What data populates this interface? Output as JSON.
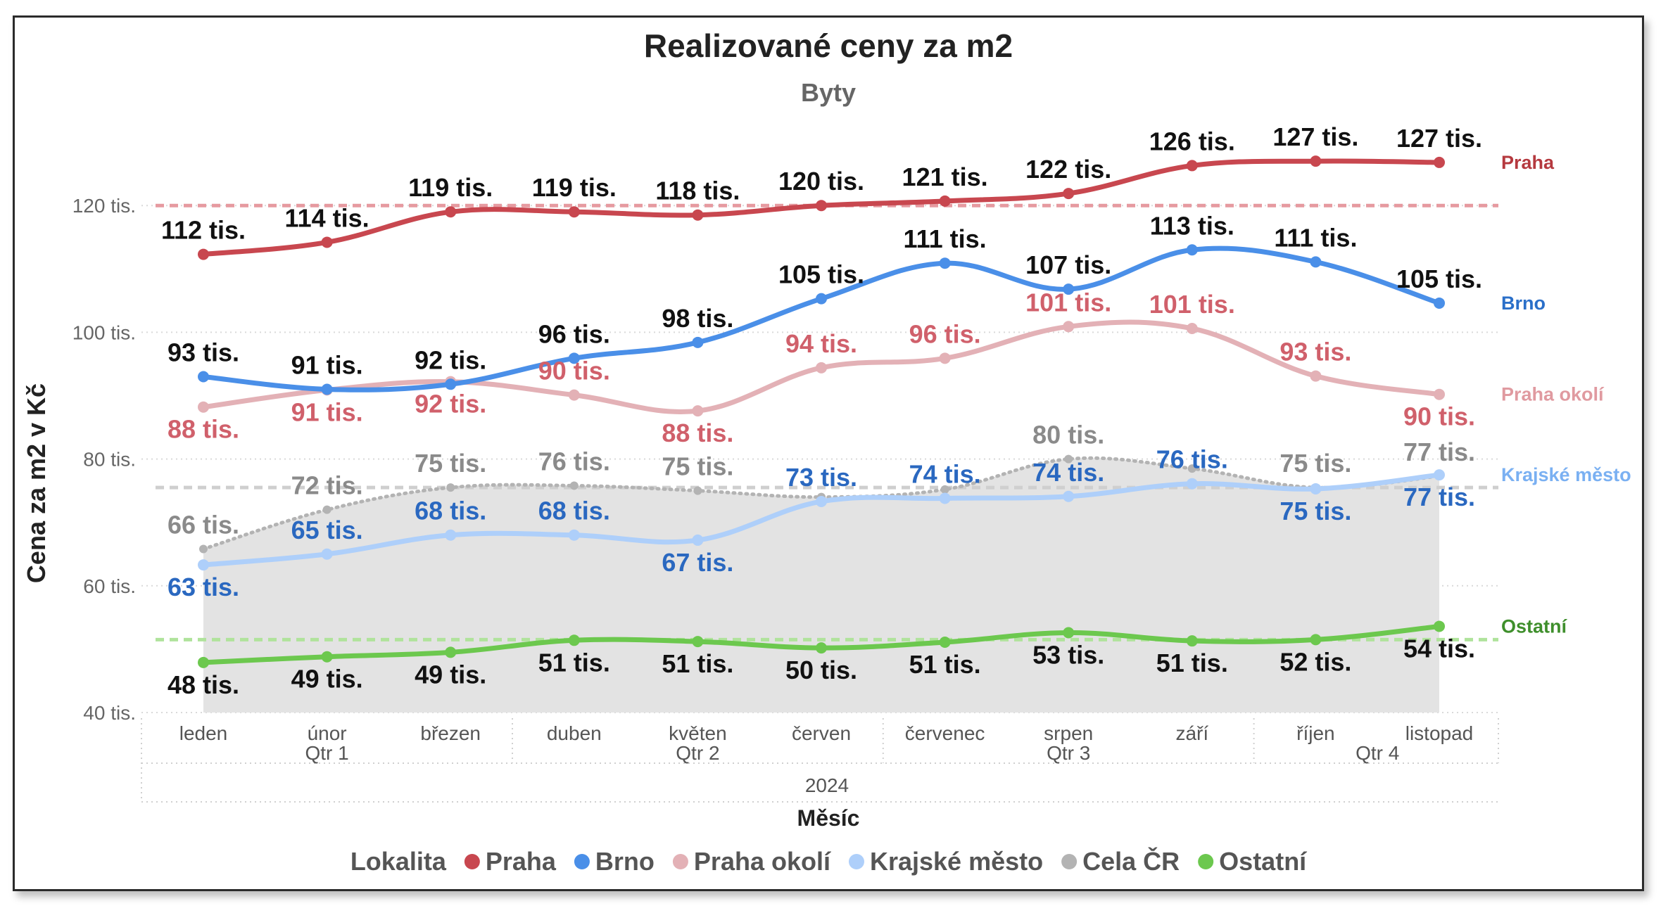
{
  "chart_data": {
    "type": "line",
    "title": "Realizované ceny za m2",
    "subtitle": "Byty",
    "xlabel": "Měsíc",
    "ylabel": "Cena za m2 v Kč",
    "ylim": [
      40,
      130
    ],
    "y_ticks": [
      {
        "value": 40,
        "label": "40 tis."
      },
      {
        "value": 60,
        "label": "60 tis."
      },
      {
        "value": 80,
        "label": "80 tis."
      },
      {
        "value": 100,
        "label": "100 tis."
      },
      {
        "value": 120,
        "label": "120 tis."
      }
    ],
    "categories": [
      "leden",
      "únor",
      "březen",
      "duben",
      "květen",
      "červen",
      "červenec",
      "srpen",
      "září",
      "říjen",
      "listopad"
    ],
    "quarters": [
      {
        "label": "Qtr 1",
        "months": [
          "leden",
          "únor",
          "březen"
        ]
      },
      {
        "label": "Qtr 2",
        "months": [
          "duben",
          "květen",
          "červen"
        ]
      },
      {
        "label": "Qtr 3",
        "months": [
          "červenec",
          "srpen",
          "září"
        ]
      },
      {
        "label": "Qtr 4",
        "months": [
          "říjen",
          "listopad"
        ]
      }
    ],
    "year": "2024",
    "legend": {
      "title": "Lokalita",
      "position": "bottom"
    },
    "grid": true,
    "series": [
      {
        "name": "Praha",
        "color": "#c8474f",
        "style": "line",
        "values": [
          112.3,
          114.2,
          119.0,
          119.0,
          118.5,
          120.0,
          120.7,
          121.9,
          126.3,
          127.0,
          126.8
        ],
        "labels": [
          "112 tis.",
          "114 tis.",
          "119 tis.",
          "119 tis.",
          "118 tis.",
          "120 tis.",
          "121 tis.",
          "122 tis.",
          "126 tis.",
          "127 tis.",
          "127 tis."
        ],
        "label_color": "#111111",
        "label_pos": [
          "above",
          "above",
          "above",
          "above",
          "above",
          "above",
          "above",
          "above",
          "above",
          "above",
          "above"
        ],
        "end_label": "Praha",
        "end_color": "#b5393f",
        "reference": 120.0
      },
      {
        "name": "Brno",
        "color": "#4a8fe8",
        "style": "line",
        "values": [
          93.0,
          91.0,
          91.8,
          95.9,
          98.4,
          105.3,
          110.9,
          106.8,
          113.0,
          111.1,
          104.6
        ],
        "labels": [
          "93 tis.",
          "91 tis.",
          "92 tis.",
          "96 tis.",
          "98 tis.",
          "105 tis.",
          "111 tis.",
          "107 tis.",
          "113 tis.",
          "111 tis.",
          "105 tis."
        ],
        "label_color": "#111111",
        "label_pos": [
          "above",
          "above",
          "above",
          "above",
          "above",
          "above",
          "above",
          "above",
          "above",
          "above",
          "above"
        ],
        "end_label": "Brno",
        "end_color": "#2a6fc9"
      },
      {
        "name": "Praha okolí",
        "color": "#e3b1b6",
        "style": "line",
        "values": [
          88.2,
          90.9,
          92.2,
          90.1,
          87.6,
          94.4,
          95.9,
          100.9,
          100.6,
          93.1,
          90.2
        ],
        "labels": [
          "88 tis.",
          "91 tis.",
          "92 tis.",
          "90 tis.",
          "88 tis.",
          "94 tis.",
          "96 tis.",
          "101 tis.",
          "101 tis.",
          "93 tis.",
          "90 tis."
        ],
        "label_color": "#d0606b",
        "label_pos": [
          "below",
          "below",
          "below",
          "above",
          "below",
          "above",
          "above",
          "above",
          "above",
          "above",
          "below"
        ],
        "end_label": "Praha okolí",
        "end_color": "#e09aa0"
      },
      {
        "name": "Krajské město",
        "color": "#aecffa",
        "style": "line",
        "values": [
          63.3,
          65.0,
          68.0,
          68.0,
          67.2,
          73.3,
          73.8,
          74.1,
          76.1,
          75.3,
          77.5
        ],
        "labels": [
          "63 tis.",
          "65 tis.",
          "68 tis.",
          "68 tis.",
          "67 tis.",
          "73 tis.",
          "74 tis.",
          "74 tis.",
          "76 tis.",
          "75 tis.",
          "77 tis."
        ],
        "label_color": "#2a68c0",
        "label_pos": [
          "below",
          "above",
          "above",
          "above",
          "below",
          "above",
          "above",
          "above",
          "above",
          "below",
          "below"
        ],
        "end_label": "Krajské město",
        "end_color": "#7ab0f2"
      },
      {
        "name": "Cela ČR",
        "color": "#b3b3b3",
        "style": "dotted-area",
        "values": [
          65.8,
          72.0,
          75.5,
          75.8,
          75.0,
          74.0,
          75.2,
          80.0,
          78.5,
          75.5,
          77.3
        ],
        "labels": [
          "66 tis.",
          "72 tis.",
          "75 tis.",
          "76 tis.",
          "75 tis.",
          "",
          "",
          "80 tis.",
          "",
          "75 tis.",
          "77 tis."
        ],
        "label_color": "#8a8a8a",
        "label_pos": [
          "above",
          "above",
          "above",
          "above",
          "above",
          "above",
          "above",
          "above",
          "above",
          "above",
          "above"
        ],
        "reference": 75.5
      },
      {
        "name": "Ostatní",
        "color": "#6cc84e",
        "style": "line",
        "values": [
          47.9,
          48.8,
          49.5,
          51.4,
          51.2,
          50.2,
          51.1,
          52.6,
          51.3,
          51.5,
          53.6
        ],
        "labels": [
          "48 tis.",
          "49 tis.",
          "49 tis.",
          "51 tis.",
          "51 tis.",
          "50 tis.",
          "51 tis.",
          "53 tis.",
          "51 tis.",
          "52 tis.",
          "54 tis."
        ],
        "label_color": "#111111",
        "label_pos": [
          "below",
          "below",
          "below",
          "below",
          "below",
          "below",
          "below",
          "below",
          "below",
          "below",
          "below"
        ],
        "end_label": "Ostatní",
        "end_color": "#3f8f2c",
        "reference": 51.5
      }
    ]
  }
}
